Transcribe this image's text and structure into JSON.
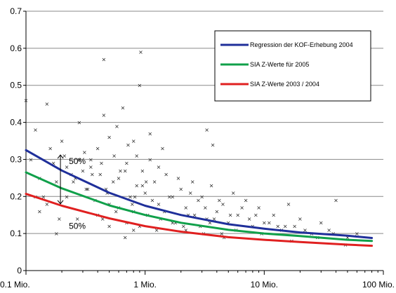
{
  "chart_data": {
    "type": "scatter",
    "title": "",
    "xlabel": "",
    "ylabel": "",
    "x_scale": "log",
    "xlim": [
      0.1,
      100
    ],
    "ylim": [
      0,
      0.7
    ],
    "grid": true,
    "legend_position": "top-right",
    "x_tick_labels": [
      "0.1 Mio.",
      "1 Mio.",
      "10 Mio.",
      "100 Mio."
    ],
    "x_tick_values": [
      0.1,
      1,
      10,
      100
    ],
    "y_tick_labels": [
      "0",
      "0.1",
      "0.2",
      "0.3",
      "0.4",
      "0.5",
      "0.6",
      "0.7"
    ],
    "y_tick_values": [
      0,
      0.1,
      0.2,
      0.3,
      0.4,
      0.5,
      0.6,
      0.7
    ],
    "series": [
      {
        "name": "Regression der KOF-Erhebung 2004",
        "color": "#1f2f9a",
        "kind": "line",
        "x": [
          0.1,
          0.2,
          0.5,
          1,
          2,
          5,
          10,
          20,
          50,
          80
        ],
        "y": [
          0.325,
          0.27,
          0.21,
          0.175,
          0.15,
          0.125,
          0.113,
          0.103,
          0.094,
          0.088
        ]
      },
      {
        "name": "SIA Z-Werte für 2005",
        "color": "#10a04a",
        "kind": "line",
        "x": [
          0.1,
          0.2,
          0.5,
          1,
          2,
          5,
          10,
          20,
          50,
          80
        ],
        "y": [
          0.265,
          0.222,
          0.176,
          0.15,
          0.129,
          0.11,
          0.1,
          0.093,
          0.083,
          0.08
        ]
      },
      {
        "name": "SIA Z-Werte 2003 / 2004",
        "color": "#e02020",
        "kind": "line",
        "x": [
          0.1,
          0.2,
          0.5,
          1,
          2,
          5,
          10,
          20,
          50,
          80
        ],
        "y": [
          0.207,
          0.175,
          0.141,
          0.12,
          0.105,
          0.09,
          0.083,
          0.077,
          0.07,
          0.067
        ]
      }
    ],
    "points": {
      "marker": "x",
      "x": [
        0.1,
        0.11,
        0.12,
        0.13,
        0.14,
        0.15,
        0.16,
        0.17,
        0.18,
        0.2,
        0.22,
        0.25,
        0.28,
        0.3,
        0.32,
        0.35,
        0.38,
        0.4,
        0.42,
        0.45,
        0.48,
        0.5,
        0.55,
        0.6,
        0.65,
        0.7,
        0.75,
        0.8,
        0.85,
        0.9,
        0.95,
        1,
        1.1,
        1.2,
        1.3,
        1.5,
        1.7,
        2,
        2.2,
        2.5,
        2.8,
        3,
        3.3,
        3.6,
        4,
        4.5,
        5,
        5.5,
        6,
        7,
        8,
        9,
        10,
        12,
        14,
        16,
        18,
        20,
        25,
        30,
        35,
        40,
        50,
        60,
        0.12,
        0.15,
        0.18,
        0.22,
        0.27,
        0.33,
        0.4,
        0.5,
        0.6,
        0.7,
        0.8,
        0.9,
        1.05,
        1.25,
        1.45,
        1.8,
        2.1,
        2.6,
        3.1,
        3.8,
        4.6,
        5.8,
        7.5,
        9.5,
        13,
        17,
        22,
        28,
        38,
        48,
        0.45,
        0.58,
        0.72,
        0.85,
        1.1,
        1.4,
        0.28,
        0.35,
        0.62,
        0.95,
        1.3,
        1.9,
        2.4,
        3.2,
        4.2,
        5.2,
        6.5,
        8.5,
        11,
        15,
        0.24,
        0.31,
        0.43,
        0.54,
        0.68,
        0.82,
        1.15,
        1.6,
        2.3,
        2.9,
        3.5,
        4.4,
        0.21,
        0.26,
        0.36,
        0.47,
        0.57,
        0.78,
        1.02,
        1.35,
        1.7,
        2.2,
        0.13,
        0.19,
        0.5,
        0.8,
        3.3,
        3.7,
        0.44,
        0.92,
        0.68
      ],
      "y": [
        0.46,
        0.3,
        0.38,
        0.25,
        0.2,
        0.45,
        0.33,
        0.29,
        0.1,
        0.35,
        0.28,
        0.24,
        0.4,
        0.27,
        0.22,
        0.3,
        0.19,
        0.33,
        0.26,
        0.57,
        0.21,
        0.36,
        0.31,
        0.25,
        0.44,
        0.29,
        0.2,
        0.35,
        0.23,
        0.5,
        0.27,
        0.21,
        0.3,
        0.24,
        0.18,
        0.26,
        0.2,
        0.22,
        0.17,
        0.24,
        0.19,
        0.2,
        0.14,
        0.23,
        0.16,
        0.18,
        0.13,
        0.21,
        0.15,
        0.19,
        0.12,
        0.17,
        0.13,
        0.15,
        0.11,
        0.18,
        0.12,
        0.14,
        0.1,
        0.13,
        0.11,
        0.19,
        0.09,
        0.1,
        0.2,
        0.18,
        0.24,
        0.2,
        0.14,
        0.22,
        0.15,
        0.18,
        0.17,
        0.13,
        0.16,
        0.12,
        0.15,
        0.11,
        0.16,
        0.13,
        0.12,
        0.15,
        0.1,
        0.14,
        0.09,
        0.11,
        0.14,
        0.1,
        0.12,
        0.08,
        0.11,
        0.09,
        0.1,
        0.07,
        0.42,
        0.39,
        0.34,
        0.31,
        0.37,
        0.33,
        0.3,
        0.28,
        0.27,
        0.23,
        0.28,
        0.25,
        0.21,
        0.17,
        0.19,
        0.15,
        0.17,
        0.15,
        0.13,
        0.12,
        0.26,
        0.32,
        0.29,
        0.24,
        0.27,
        0.2,
        0.19,
        0.2,
        0.15,
        0.12,
        0.13,
        0.1,
        0.31,
        0.25,
        0.26,
        0.22,
        0.16,
        0.18,
        0.24,
        0.14,
        0.13,
        0.11,
        0.16,
        0.14,
        0.12,
        0.11,
        0.38,
        0.34,
        0.14,
        0.59,
        0.09
      ]
    },
    "annotations": [
      {
        "text": "50%",
        "x": 0.2,
        "y": 0.295
      },
      {
        "text": "50%",
        "x": 0.2,
        "y": 0.12
      }
    ]
  }
}
